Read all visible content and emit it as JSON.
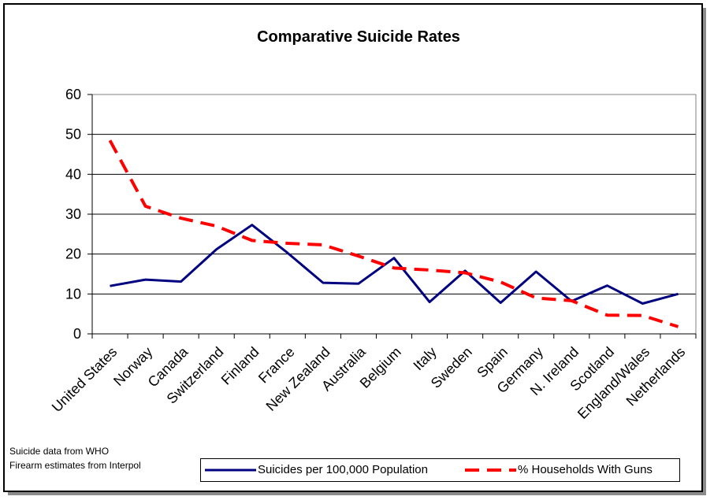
{
  "chart_data": {
    "type": "line",
    "title": "Comparative Suicide Rates",
    "categories": [
      "United States",
      "Norway",
      "Canada",
      "Switzerland",
      "Finland",
      "France",
      "New Zealand",
      "Australia",
      "Belgium",
      "Italy",
      "Sweden",
      "Spain",
      "Germany",
      "N. Ireland",
      "Scotland",
      "England/Wales",
      "Netherlands"
    ],
    "series": [
      {
        "name": "Suicides per 100,000 Population",
        "color": "#000080",
        "style": "solid",
        "values": [
          12,
          13.6,
          13.1,
          21.2,
          27.3,
          20.3,
          12.8,
          12.6,
          19,
          8,
          15.8,
          7.8,
          15.6,
          8.2,
          12.1,
          7.6,
          10
        ]
      },
      {
        "name": "% Households With Guns",
        "color": "#ff0000",
        "style": "dashed",
        "values": [
          48.5,
          32,
          29,
          27,
          23.4,
          22.7,
          22.3,
          19.5,
          16.5,
          16,
          15.3,
          13,
          9,
          8.3,
          4.7,
          4.6,
          1.8
        ]
      }
    ],
    "ylim": [
      0,
      60
    ],
    "yticks": [
      "0",
      "10",
      "20",
      "30",
      "40",
      "50",
      "60"
    ],
    "grid": true,
    "legend": "bottom",
    "notes": [
      "Suicide data from WHO",
      "Firearm estimates from Interpol"
    ]
  }
}
